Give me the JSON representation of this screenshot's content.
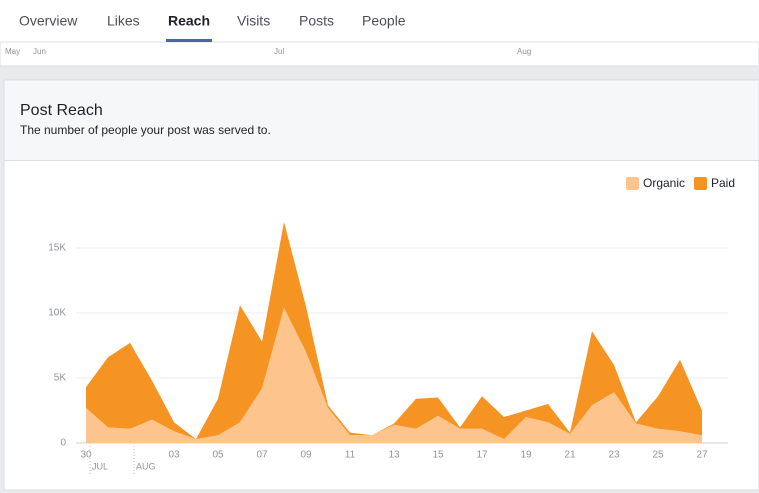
{
  "tabs": [
    "Overview",
    "Likes",
    "Reach",
    "Visits",
    "Posts",
    "People"
  ],
  "active_tab": "Reach",
  "timeline": [
    "May",
    "Jun",
    "Jul",
    "Aug"
  ],
  "chart_data": {
    "type": "stacked-area",
    "title": "Post Reach",
    "subtitle": "The number of people your post was served to.",
    "categories": [
      "30",
      null,
      null,
      null,
      "03",
      null,
      "05",
      null,
      "07",
      null,
      "09",
      null,
      "11",
      null,
      "13",
      null,
      "15",
      null,
      "17",
      null,
      "19",
      null,
      "21",
      null,
      "23",
      null,
      "25",
      null,
      "27"
    ],
    "month_labels": [
      "JUL",
      "AUG"
    ],
    "series": [
      {
        "name": "Organic",
        "color": "#fdc58d",
        "values": [
          2700,
          1200,
          1100,
          1800,
          900,
          300,
          600,
          1600,
          4200,
          10400,
          7000,
          2700,
          600,
          600,
          1400,
          1100,
          2100,
          1100,
          1100,
          300,
          2000,
          1600,
          700,
          2900,
          3900,
          1500,
          1100,
          900,
          600
        ]
      },
      {
        "name": "Paid",
        "color": "#f59423",
        "values": [
          1600,
          5400,
          6600,
          3000,
          700,
          0,
          2800,
          9000,
          3600,
          6600,
          3500,
          200,
          200,
          0,
          100,
          2300,
          1400,
          100,
          2500,
          1700,
          500,
          1400,
          100,
          5700,
          2100,
          100,
          2500,
          5500,
          1900
        ]
      }
    ],
    "ylim": [
      0,
      20000
    ],
    "yticks": [
      0,
      {
        "value": 5000,
        "label": "5K"
      },
      {
        "value": 10000,
        "label": "10K"
      },
      {
        "value": 15000,
        "label": "15K"
      }
    ],
    "grid": true,
    "legend": "top-right"
  }
}
